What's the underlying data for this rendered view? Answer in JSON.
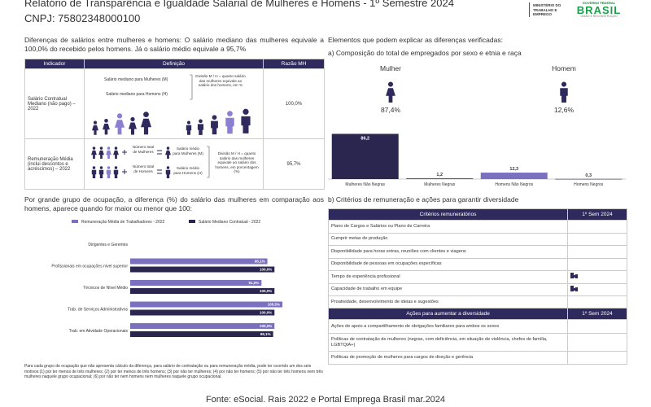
{
  "header": {
    "title": "Relatório de Transparência e Igualdade Salarial de Mulheres e Homens - 1º Semestre 2024",
    "cnpj": "CNPJ: 75802348000100",
    "ministry": "MINISTÉRIO DO TRABALHO E EMPREGO",
    "government": "GOVERNO FEDERAL",
    "brasil": "BRASIL",
    "slogan": "UNIÃO E RECONSTRUÇÃO"
  },
  "summary": "Diferenças de salários entre mulheres e homens: O salário mediano das mulheres equivale a 100,0% do recebido pelos homens. Já o salário médio equivale a 95,7%",
  "indicator_table": {
    "columns": [
      "Indicador",
      "Definição",
      "Razão MH"
    ],
    "rows": [
      {
        "indicator": "Salário Contratual Mediano (não pago) – 2022",
        "ratio": "100,0%",
        "definition": [
          "Salário mediano para Mulheres (M)",
          "Salário mediano para Homens (H)",
          "Divisão M / H = quanto salário das mulheres equivale ao salário dos homens, em %"
        ]
      },
      {
        "indicator": "Remuneração Média (inclui descontos e acréscimos) – 2022",
        "ratio": "95,7%",
        "definition": [
          "Número total de Mulheres",
          "Salário médio para Mulheres (M)",
          "Número total de Homens",
          "Salário médio para Homens (H)",
          "Divisão M / H = quanto salário das mulheres equivale ao salário dos homens, em porcentagem (%)"
        ]
      }
    ]
  },
  "occupation_intro": "Por grande grupo de ocupação, a diferença (%) do salário das mulheres em comparação aos homens, aparece quando for maior ou menor que 100:",
  "occupation_chart": {
    "type": "hbar",
    "categories": [
      "Dirigentes e Gerentes",
      "Profissionais em ocupações nível superior",
      "Técnicos de Nível Médio",
      "Trab. de Serviços Administrativos",
      "Trab. em Atividade Operacionais"
    ],
    "xlim": [
      0,
      110
    ],
    "series": [
      {
        "name": "Remuneração Média de Trabalhadores - 2022",
        "color": "#7b6fc0",
        "values": [
          null,
          95.1,
          91.0,
          105.5,
          100.0
        ],
        "value_labels": [
          null,
          "95,1%",
          "91,0%",
          "105,5%",
          "100,0%"
        ]
      },
      {
        "name": "Salário Mediano Contratual - 2022",
        "color": "#2a2650",
        "values": [
          null,
          100.0,
          100.0,
          100.0,
          99.1
        ],
        "value_labels": [
          null,
          "100,0%",
          "100,0%",
          "100,0%",
          "99,1%"
        ]
      }
    ]
  },
  "footnote": "Para cada grupo de ocupação que não apresenta cálculo da diferença, para salário de contratação ou para remuneração média, pode ter ocorrido um dos seis motivos:(1) por ter menos de três mulheres; (2) por ter menos de três homens; (3) por não ter mulheres; (4) por não ter homens; (5) por não ter três homens nem três mulheres naquele grupo ocupacional; (6) por não ter nem homens nem mulheres naquele grupo ocupacional.",
  "elements_heading": "Elementos que podem explicar as diferenças verificadas:",
  "section_a": "a) Composição do total de empregados por sexo e etnia e raça",
  "sex": [
    {
      "label": "Mulher",
      "share": "87,4%"
    },
    {
      "label": "Homem",
      "share": "12,6%"
    }
  ],
  "composition_chart": {
    "type": "bar",
    "categories": [
      "Mulheres Não Negras",
      "Mulheres Negras",
      "Homens Não Negros",
      "Homens Negros"
    ],
    "values": [
      86.2,
      1.2,
      12.3,
      0.3
    ],
    "value_labels": [
      "86,2",
      "1,2",
      "12,3",
      "0,3"
    ],
    "colors": [
      "#2a2650",
      "#2a2650",
      "#7b6fc0",
      "#2a2650"
    ],
    "ylim": [
      0,
      90
    ]
  },
  "section_b": "b) Critérios de remuneração e ações para garantir diversidade",
  "criteria_table": {
    "header": [
      "Critérios remuneratórios",
      "1º Sem 2024"
    ],
    "rows": [
      {
        "label": "Plano de Cargos e Salários ou Plano de Carreira",
        "checked": false
      },
      {
        "label": "Cumprir metas de produção",
        "checked": false
      },
      {
        "label": "Disponibilidade para horas extras, reuniões com clientes e viagens",
        "checked": false
      },
      {
        "label": "Disponibilidade de pessoas em ocupações específicas",
        "checked": false
      },
      {
        "label": "Tempo de experiência profissional",
        "checked": true
      },
      {
        "label": "Capacidade de trabalho em equipe",
        "checked": true
      },
      {
        "label": "Proatividade, desenvolvimento de ideias e sugestões",
        "checked": false
      }
    ]
  },
  "actions_table": {
    "header": [
      "Ações para aumentar a diversidade",
      "1º Sem 2024"
    ],
    "rows": [
      {
        "label": "Ações de apoio a compartilhamento de obrigações familiares para ambos os sexos",
        "checked": false
      },
      {
        "label": "Políticas de contratação de mulheres (negras, com deficiência, em situação de violência, chefes de família, LGBTQIA+)",
        "checked": false
      },
      {
        "label": "Políticas de promoção de mulheres para cargos de direção e gerência",
        "checked": false
      }
    ]
  },
  "source": "Fonte: eSocial. Rais 2022 e Portal Emprega Brasil mar.2024"
}
